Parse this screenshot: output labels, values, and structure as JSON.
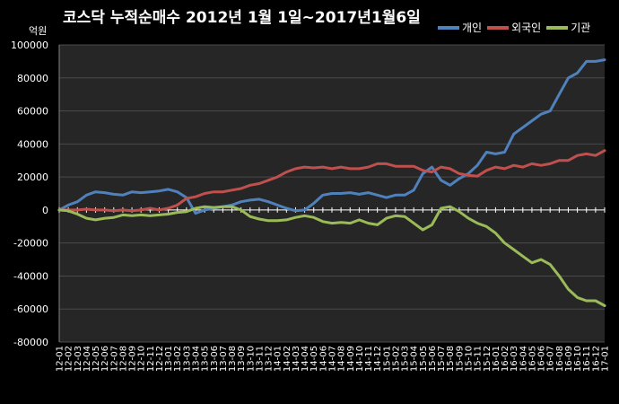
{
  "chart_data": {
    "type": "line",
    "title": "코스닥  누적순매수 2012년 1월 1일~2017년1월6일",
    "ylabel": "억원",
    "xlabel": "",
    "ylim": [
      -80000,
      100000
    ],
    "yticks": [
      100000,
      80000,
      60000,
      40000,
      20000,
      0,
      -20000,
      -40000,
      -60000,
      -80000
    ],
    "ytick_labels": [
      "100000",
      "80000",
      "60000",
      "40000",
      "20000",
      "0",
      "-20000",
      "-40000",
      "-60000",
      "-80000"
    ],
    "grid": true,
    "legend_position": "top-right",
    "background": "#000000",
    "plot_background": "#262626",
    "x": [
      "12-01",
      "12-02",
      "12-03",
      "12-04",
      "12-05",
      "12-06",
      "12-07",
      "12-08",
      "12-09",
      "12-10",
      "12-11",
      "12-12",
      "13-01",
      "13-02",
      "13-03",
      "13-04",
      "13-05",
      "13-06",
      "13-07",
      "13-08",
      "13-09",
      "13-10",
      "13-11",
      "13-12",
      "14-01",
      "14-02",
      "14-03",
      "14-04",
      "14-05",
      "14-06",
      "14-07",
      "14-08",
      "14-09",
      "14-10",
      "14-11",
      "14-12",
      "15-01",
      "15-02",
      "15-03",
      "15-04",
      "15-05",
      "15-06",
      "15-07",
      "15-08",
      "15-09",
      "15-10",
      "15-11",
      "15-12",
      "16-01",
      "16-02",
      "16-03",
      "16-04",
      "16-05",
      "16-06",
      "16-07",
      "16-08",
      "16-09",
      "16-10",
      "16-11",
      "16-12",
      "17-01"
    ],
    "series": [
      {
        "name": "개인",
        "color": "#4f81bd",
        "values": [
          0,
          3000,
          5000,
          9000,
          11000,
          10500,
          9500,
          9000,
          11000,
          10500,
          11000,
          11500,
          12500,
          11000,
          7500,
          -2000,
          0,
          1000,
          2000,
          3000,
          5000,
          6000,
          6500,
          5000,
          3000,
          1000,
          -500,
          0,
          4000,
          9000,
          10000,
          10000,
          10500,
          9500,
          10500,
          9000,
          7500,
          9000,
          9000,
          12000,
          22000,
          26000,
          18000,
          15000,
          19000,
          22000,
          27000,
          35000,
          34000,
          35000,
          46000,
          50000,
          54000,
          58000,
          60000,
          70000,
          80000,
          83000,
          90000,
          90000,
          91000
        ]
      },
      {
        "name": "외국인",
        "color": "#c0504d",
        "values": [
          0,
          0,
          0,
          500,
          0,
          0,
          -500,
          0,
          -500,
          0,
          1000,
          0,
          1000,
          3000,
          7000,
          8000,
          10000,
          11000,
          11000,
          12000,
          13000,
          15000,
          16000,
          18000,
          20000,
          23000,
          25000,
          26000,
          25500,
          26000,
          25000,
          26000,
          25000,
          25000,
          26000,
          28000,
          28000,
          26500,
          26500,
          26500,
          24000,
          23000,
          26000,
          25000,
          22000,
          21000,
          20500,
          24000,
          26000,
          25000,
          27000,
          26000,
          28000,
          27000,
          28000,
          30000,
          30000,
          33000,
          34000,
          33000,
          36000
        ]
      },
      {
        "name": "기관",
        "color": "#9bbb59",
        "values": [
          0,
          -500,
          -2500,
          -5000,
          -6000,
          -5000,
          -4500,
          -3000,
          -3500,
          -3000,
          -3500,
          -3000,
          -2500,
          -1500,
          -1000,
          1000,
          2000,
          1500,
          2000,
          2000,
          0,
          -4000,
          -5500,
          -6500,
          -6500,
          -6000,
          -4500,
          -3500,
          -4500,
          -7000,
          -8000,
          -7500,
          -8000,
          -6000,
          -8000,
          -9000,
          -5000,
          -3500,
          -4000,
          -8000,
          -12000,
          -9000,
          1000,
          2000,
          -1000,
          -5000,
          -8000,
          -10000,
          -14000,
          -20000,
          -24000,
          -28000,
          -32000,
          -30000,
          -33000,
          -40000,
          -48000,
          -53000,
          -55000,
          -55000,
          -58000
        ]
      }
    ]
  }
}
